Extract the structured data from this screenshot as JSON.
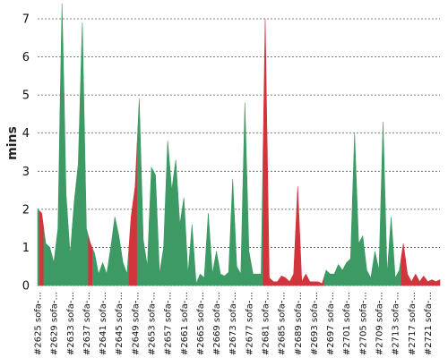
{
  "chart_data": {
    "type": "area",
    "ylabel": "mins",
    "ylim": [
      0,
      7.4
    ],
    "yticks": [
      0,
      1,
      2,
      3,
      4,
      5,
      6,
      7
    ],
    "grid": true,
    "colors": {
      "pass": "#3d9a64",
      "fail": "#d1343b"
    },
    "xtick_labels": [
      "#2625 sofa-...",
      "#2629 sofa-...",
      "#2633 sofa-...",
      "#2637 sofa-...",
      "#2641 sofa-...",
      "#2645 sofa-...",
      "#2649 sofa-...",
      "#2653 sofa-...",
      "#2657 sofa-...",
      "#2661 sofa-...",
      "#2665 sofa-...",
      "#2669 sofa-...",
      "#2673 sofa-...",
      "#2677 sofa-...",
      "#2681 sofa-...",
      "#2685 sofa-...",
      "#2689 sofa-...",
      "#2693 sofa-...",
      "#2697 sofa-...",
      "#2701 sofa-...",
      "#2705 sofa-...",
      "#2709 sofa-...",
      "#2713 sofa-...",
      "#2717 sofa-...",
      "#2721 sofa-..."
    ],
    "builds": [
      {
        "id": 2625,
        "minutes": 2.0,
        "status": "pass"
      },
      {
        "id": 2626,
        "minutes": 1.9,
        "status": "fail"
      },
      {
        "id": 2627,
        "minutes": 1.1,
        "status": "pass"
      },
      {
        "id": 2628,
        "minutes": 1.0,
        "status": "pass"
      },
      {
        "id": 2629,
        "minutes": 0.6,
        "status": "pass"
      },
      {
        "id": 2630,
        "minutes": 1.5,
        "status": "pass"
      },
      {
        "id": 2631,
        "minutes": 7.7,
        "status": "pass"
      },
      {
        "id": 2632,
        "minutes": 2.4,
        "status": "pass"
      },
      {
        "id": 2633,
        "minutes": 0.8,
        "status": "pass"
      },
      {
        "id": 2634,
        "minutes": 2.2,
        "status": "pass"
      },
      {
        "id": 2635,
        "minutes": 3.2,
        "status": "pass"
      },
      {
        "id": 2636,
        "minutes": 6.9,
        "status": "pass"
      },
      {
        "id": 2637,
        "minutes": 1.5,
        "status": "pass"
      },
      {
        "id": 2638,
        "minutes": 1.1,
        "status": "fail"
      },
      {
        "id": 2639,
        "minutes": 0.85,
        "status": "pass"
      },
      {
        "id": 2640,
        "minutes": 0.3,
        "status": "pass"
      },
      {
        "id": 2641,
        "minutes": 0.6,
        "status": "pass"
      },
      {
        "id": 2642,
        "minutes": 0.3,
        "status": "pass"
      },
      {
        "id": 2643,
        "minutes": 1.0,
        "status": "pass"
      },
      {
        "id": 2644,
        "minutes": 1.8,
        "status": "pass"
      },
      {
        "id": 2645,
        "minutes": 1.3,
        "status": "pass"
      },
      {
        "id": 2646,
        "minutes": 0.6,
        "status": "pass"
      },
      {
        "id": 2647,
        "minutes": 0.3,
        "status": "pass"
      },
      {
        "id": 2648,
        "minutes": 1.8,
        "status": "fail"
      },
      {
        "id": 2649,
        "minutes": 2.6,
        "status": "fail"
      },
      {
        "id": 2650,
        "minutes": 4.9,
        "status": "pass"
      },
      {
        "id": 2651,
        "minutes": 1.2,
        "status": "pass"
      },
      {
        "id": 2652,
        "minutes": 0.5,
        "status": "pass"
      },
      {
        "id": 2653,
        "minutes": 3.1,
        "status": "pass"
      },
      {
        "id": 2654,
        "minutes": 2.9,
        "status": "pass"
      },
      {
        "id": 2655,
        "minutes": 0.3,
        "status": "pass"
      },
      {
        "id": 2656,
        "minutes": 1.0,
        "status": "pass"
      },
      {
        "id": 2657,
        "minutes": 3.8,
        "status": "pass"
      },
      {
        "id": 2658,
        "minutes": 2.5,
        "status": "pass"
      },
      {
        "id": 2659,
        "minutes": 3.3,
        "status": "pass"
      },
      {
        "id": 2660,
        "minutes": 1.6,
        "status": "pass"
      },
      {
        "id": 2661,
        "minutes": 2.3,
        "status": "pass"
      },
      {
        "id": 2662,
        "minutes": 0.3,
        "status": "pass"
      },
      {
        "id": 2663,
        "minutes": 1.6,
        "status": "pass"
      },
      {
        "id": 2664,
        "minutes": 0.05,
        "status": "pass"
      },
      {
        "id": 2665,
        "minutes": 0.3,
        "status": "pass"
      },
      {
        "id": 2666,
        "minutes": 0.2,
        "status": "pass"
      },
      {
        "id": 2667,
        "minutes": 1.9,
        "status": "pass"
      },
      {
        "id": 2668,
        "minutes": 0.3,
        "status": "pass"
      },
      {
        "id": 2669,
        "minutes": 0.9,
        "status": "pass"
      },
      {
        "id": 2670,
        "minutes": 0.3,
        "status": "pass"
      },
      {
        "id": 2671,
        "minutes": 0.25,
        "status": "pass"
      },
      {
        "id": 2672,
        "minutes": 0.35,
        "status": "pass"
      },
      {
        "id": 2673,
        "minutes": 2.8,
        "status": "pass"
      },
      {
        "id": 2674,
        "minutes": 0.5,
        "status": "pass"
      },
      {
        "id": 2675,
        "minutes": 0.3,
        "status": "pass"
      },
      {
        "id": 2676,
        "minutes": 4.8,
        "status": "pass"
      },
      {
        "id": 2677,
        "minutes": 0.9,
        "status": "pass"
      },
      {
        "id": 2678,
        "minutes": 0.3,
        "status": "pass"
      },
      {
        "id": 2679,
        "minutes": 0.3,
        "status": "pass"
      },
      {
        "id": 2680,
        "minutes": 0.3,
        "status": "pass"
      },
      {
        "id": 2681,
        "minutes": 7.0,
        "status": "fail"
      },
      {
        "id": 2682,
        "minutes": 0.2,
        "status": "fail"
      },
      {
        "id": 2683,
        "minutes": 0.1,
        "status": "fail"
      },
      {
        "id": 2684,
        "minutes": 0.1,
        "status": "fail"
      },
      {
        "id": 2685,
        "minutes": 0.25,
        "status": "fail"
      },
      {
        "id": 2686,
        "minutes": 0.2,
        "status": "fail"
      },
      {
        "id": 2687,
        "minutes": 0.1,
        "status": "fail"
      },
      {
        "id": 2688,
        "minutes": 0.3,
        "status": "fail"
      },
      {
        "id": 2689,
        "minutes": 2.6,
        "status": "fail"
      },
      {
        "id": 2690,
        "minutes": 0.1,
        "status": "fail"
      },
      {
        "id": 2691,
        "minutes": 0.3,
        "status": "fail"
      },
      {
        "id": 2692,
        "minutes": 0.1,
        "status": "fail"
      },
      {
        "id": 2693,
        "minutes": 0.1,
        "status": "fail"
      },
      {
        "id": 2694,
        "minutes": 0.1,
        "status": "fail"
      },
      {
        "id": 2695,
        "minutes": 0.05,
        "status": "fail"
      },
      {
        "id": 2696,
        "minutes": 0.4,
        "status": "pass"
      },
      {
        "id": 2697,
        "minutes": 0.3,
        "status": "pass"
      },
      {
        "id": 2698,
        "minutes": 0.3,
        "status": "pass"
      },
      {
        "id": 2699,
        "minutes": 0.55,
        "status": "pass"
      },
      {
        "id": 2700,
        "minutes": 0.4,
        "status": "pass"
      },
      {
        "id": 2701,
        "minutes": 0.6,
        "status": "pass"
      },
      {
        "id": 2702,
        "minutes": 0.7,
        "status": "pass"
      },
      {
        "id": 2703,
        "minutes": 4.0,
        "status": "pass"
      },
      {
        "id": 2704,
        "minutes": 1.1,
        "status": "pass"
      },
      {
        "id": 2705,
        "minutes": 1.3,
        "status": "pass"
      },
      {
        "id": 2706,
        "minutes": 0.4,
        "status": "pass"
      },
      {
        "id": 2707,
        "minutes": 0.2,
        "status": "pass"
      },
      {
        "id": 2708,
        "minutes": 0.9,
        "status": "pass"
      },
      {
        "id": 2709,
        "minutes": 0.4,
        "status": "pass"
      },
      {
        "id": 2710,
        "minutes": 4.3,
        "status": "pass"
      },
      {
        "id": 2711,
        "minutes": 0.3,
        "status": "pass"
      },
      {
        "id": 2712,
        "minutes": 1.8,
        "status": "pass"
      },
      {
        "id": 2713,
        "minutes": 0.2,
        "status": "pass"
      },
      {
        "id": 2714,
        "minutes": 0.4,
        "status": "pass"
      },
      {
        "id": 2715,
        "minutes": 1.1,
        "status": "fail"
      },
      {
        "id": 2716,
        "minutes": 0.3,
        "status": "fail"
      },
      {
        "id": 2717,
        "minutes": 0.1,
        "status": "fail"
      },
      {
        "id": 2718,
        "minutes": 0.3,
        "status": "fail"
      },
      {
        "id": 2719,
        "minutes": 0.1,
        "status": "fail"
      },
      {
        "id": 2720,
        "minutes": 0.25,
        "status": "fail"
      },
      {
        "id": 2721,
        "minutes": 0.1,
        "status": "fail"
      },
      {
        "id": 2722,
        "minutes": 0.15,
        "status": "fail"
      },
      {
        "id": 2723,
        "minutes": 0.1,
        "status": "fail"
      },
      {
        "id": 2724,
        "minutes": 0.15,
        "status": "fail"
      }
    ]
  }
}
